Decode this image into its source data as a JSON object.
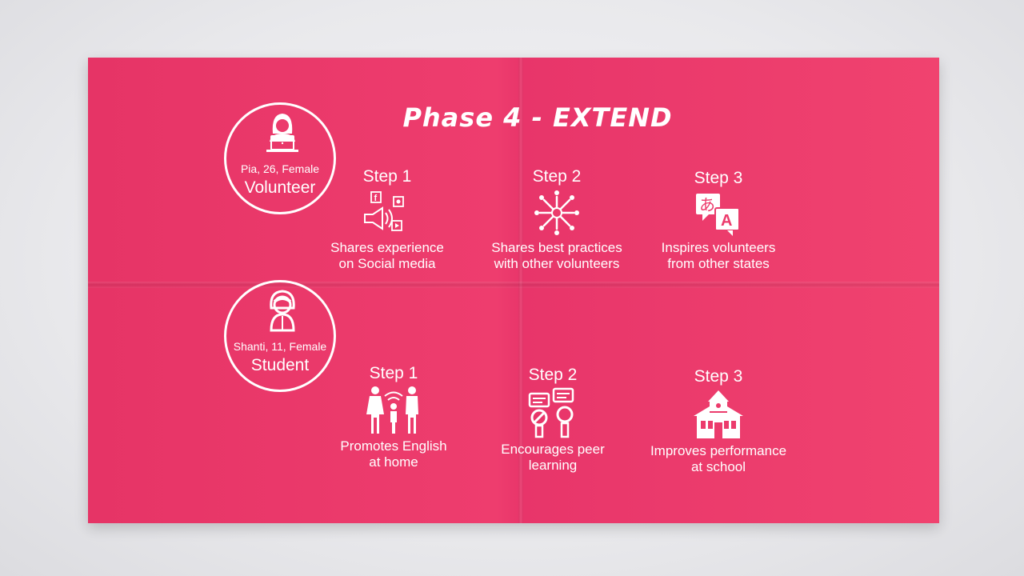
{
  "title": "Phase 4 - EXTEND",
  "volunteer": {
    "meta": "Pia, 26, Female",
    "role": "Volunteer",
    "steps": [
      {
        "label": "Step 1",
        "line1": "Shares experience",
        "line2": "on Social media",
        "icon": "social-media-icon"
      },
      {
        "label": "Step 2",
        "line1": "Shares best practices",
        "line2": "with other volunteers",
        "icon": "network-people-icon"
      },
      {
        "label": "Step 3",
        "line1": "Inspires volunteers",
        "line2": "from other states",
        "icon": "translate-icon"
      }
    ]
  },
  "student": {
    "meta": "Shanti, 11, Female",
    "role": "Student",
    "steps": [
      {
        "label": "Step 1",
        "line1": "Promotes English",
        "line2": "at home",
        "icon": "family-icon"
      },
      {
        "label": "Step 2",
        "line1": "Encourages peer",
        "line2": "learning",
        "icon": "peer-discussion-icon"
      },
      {
        "label": "Step 3",
        "line1": "Improves performance",
        "line2": "at school",
        "icon": "school-icon"
      }
    ]
  },
  "colors": {
    "sheet": "#ec3b6c",
    "text": "#ffffff",
    "background": "#ececef"
  }
}
